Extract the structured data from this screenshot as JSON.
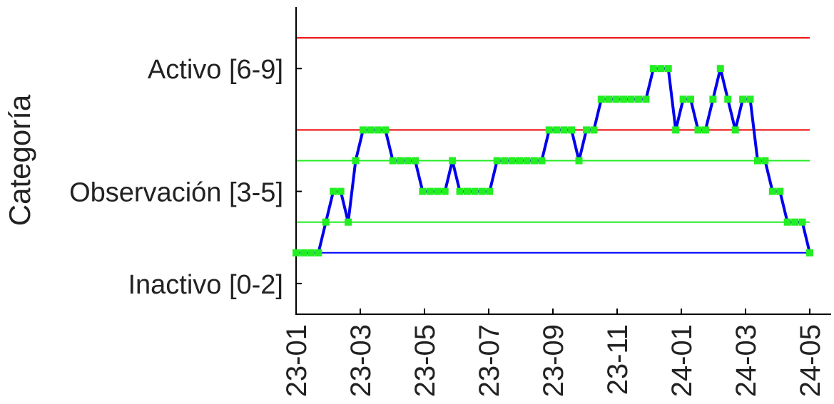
{
  "chart_data": {
    "type": "line",
    "y_label": "Categoría",
    "x": [
      0,
      1,
      2,
      3,
      4,
      5,
      6,
      7,
      8,
      9,
      10,
      11,
      12,
      13,
      14,
      15,
      16,
      17,
      18,
      19,
      20,
      21,
      22,
      23,
      24,
      25,
      26,
      27,
      28,
      29,
      30,
      31,
      32,
      33,
      34,
      35,
      36,
      37,
      38,
      39,
      40,
      41,
      42,
      43,
      44,
      45,
      46,
      47,
      48,
      49,
      50,
      51,
      52,
      53,
      54,
      55,
      56,
      57,
      58,
      59,
      60,
      61,
      62,
      63,
      64,
      65,
      66,
      67,
      68,
      69
    ],
    "series": [
      {
        "color": "#0000ee",
        "marker_color": "#22ee22",
        "values": [
          2,
          2,
          2,
          2,
          3,
          4,
          4,
          3,
          5,
          6,
          6,
          6,
          6,
          5,
          5,
          5,
          5,
          4,
          4,
          4,
          4,
          5,
          4,
          4,
          4,
          4,
          4,
          5,
          5,
          5,
          5,
          5,
          5,
          5,
          6,
          6,
          6,
          6,
          5,
          6,
          6,
          7,
          7,
          7,
          7,
          7,
          7,
          7,
          8,
          8,
          8,
          6,
          7,
          7,
          6,
          6,
          7,
          8,
          7,
          6,
          7,
          7,
          5,
          5,
          4,
          4,
          3,
          3,
          3,
          2
        ]
      }
    ],
    "xlim": [
      0,
      69
    ],
    "xticks": [
      {
        "value": 0,
        "label": "23-01"
      },
      {
        "value": 8.625,
        "label": "23-03"
      },
      {
        "value": 17.25,
        "label": "23-05"
      },
      {
        "value": 25.875,
        "label": "23-07"
      },
      {
        "value": 34.5,
        "label": "23-09"
      },
      {
        "value": 43.125,
        "label": "23-11"
      },
      {
        "value": 51.75,
        "label": "24-01"
      },
      {
        "value": 60.375,
        "label": "24-03"
      },
      {
        "value": 69,
        "label": "24-05"
      }
    ],
    "ylim": [
      0,
      10
    ],
    "yticks": [
      {
        "value": 1,
        "label": "Inactivo [0-2]"
      },
      {
        "value": 4,
        "label": "Observación [3-5]"
      },
      {
        "value": 8,
        "label": "Activo [6-9]"
      }
    ],
    "reference_lines": [
      {
        "value": 2,
        "color": "#0000ff"
      },
      {
        "value": 3,
        "color": "#22ee22"
      },
      {
        "value": 5,
        "color": "#22ee22"
      },
      {
        "value": 6,
        "color": "#ee0000"
      },
      {
        "value": 9,
        "color": "#ee0000"
      }
    ]
  }
}
